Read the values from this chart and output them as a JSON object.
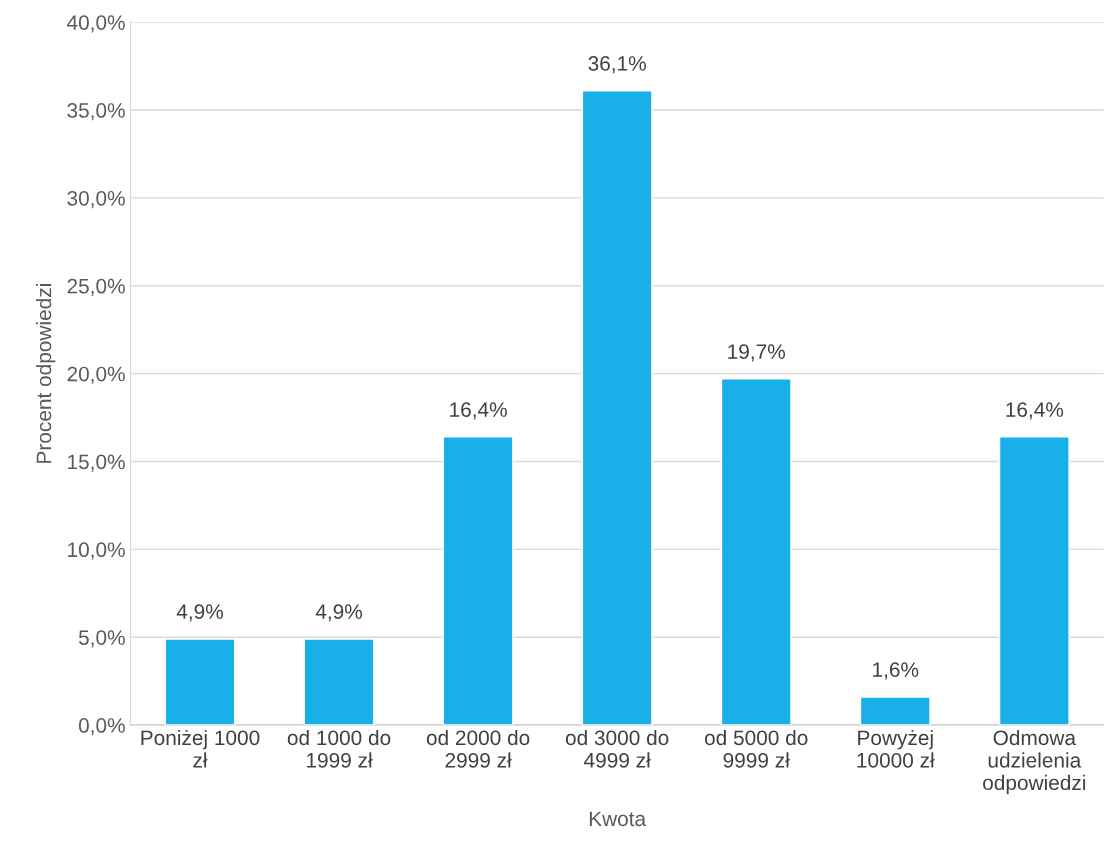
{
  "chart_data": {
    "type": "bar",
    "xlabel": "Kwota",
    "ylabel": "Procent odpowiedzi",
    "categories": [
      "Poniżej 1000\nzł",
      "od 1000 do\n1999 zł",
      "od 2000 do\n2999 zł",
      "od 3000 do\n4999 zł",
      "od 5000 do\n9999 zł",
      "Powyżej\n10000 zł",
      "Odmowa\nudzielenia\nodpowiedzi"
    ],
    "values": [
      4.9,
      4.9,
      16.4,
      36.1,
      19.7,
      1.6,
      16.4
    ],
    "value_labels": [
      "4,9%",
      "4,9%",
      "16,4%",
      "36,1%",
      "19,7%",
      "1,6%",
      "16,4%"
    ],
    "color": "#19afe8",
    "ylim": [
      0,
      40
    ],
    "yticks": [
      {
        "value": 0,
        "label": "0,0%"
      },
      {
        "value": 5,
        "label": "5,0%"
      },
      {
        "value": 10,
        "label": "10,0%"
      },
      {
        "value": 15,
        "label": "15,0%"
      },
      {
        "value": 20,
        "label": "20,0%"
      },
      {
        "value": 25,
        "label": "25,0%"
      },
      {
        "value": 30,
        "label": "30,0%"
      },
      {
        "value": 35,
        "label": "35,0%"
      },
      {
        "value": 40,
        "label": "40,0%"
      }
    ],
    "grid": "y",
    "legend": false
  }
}
